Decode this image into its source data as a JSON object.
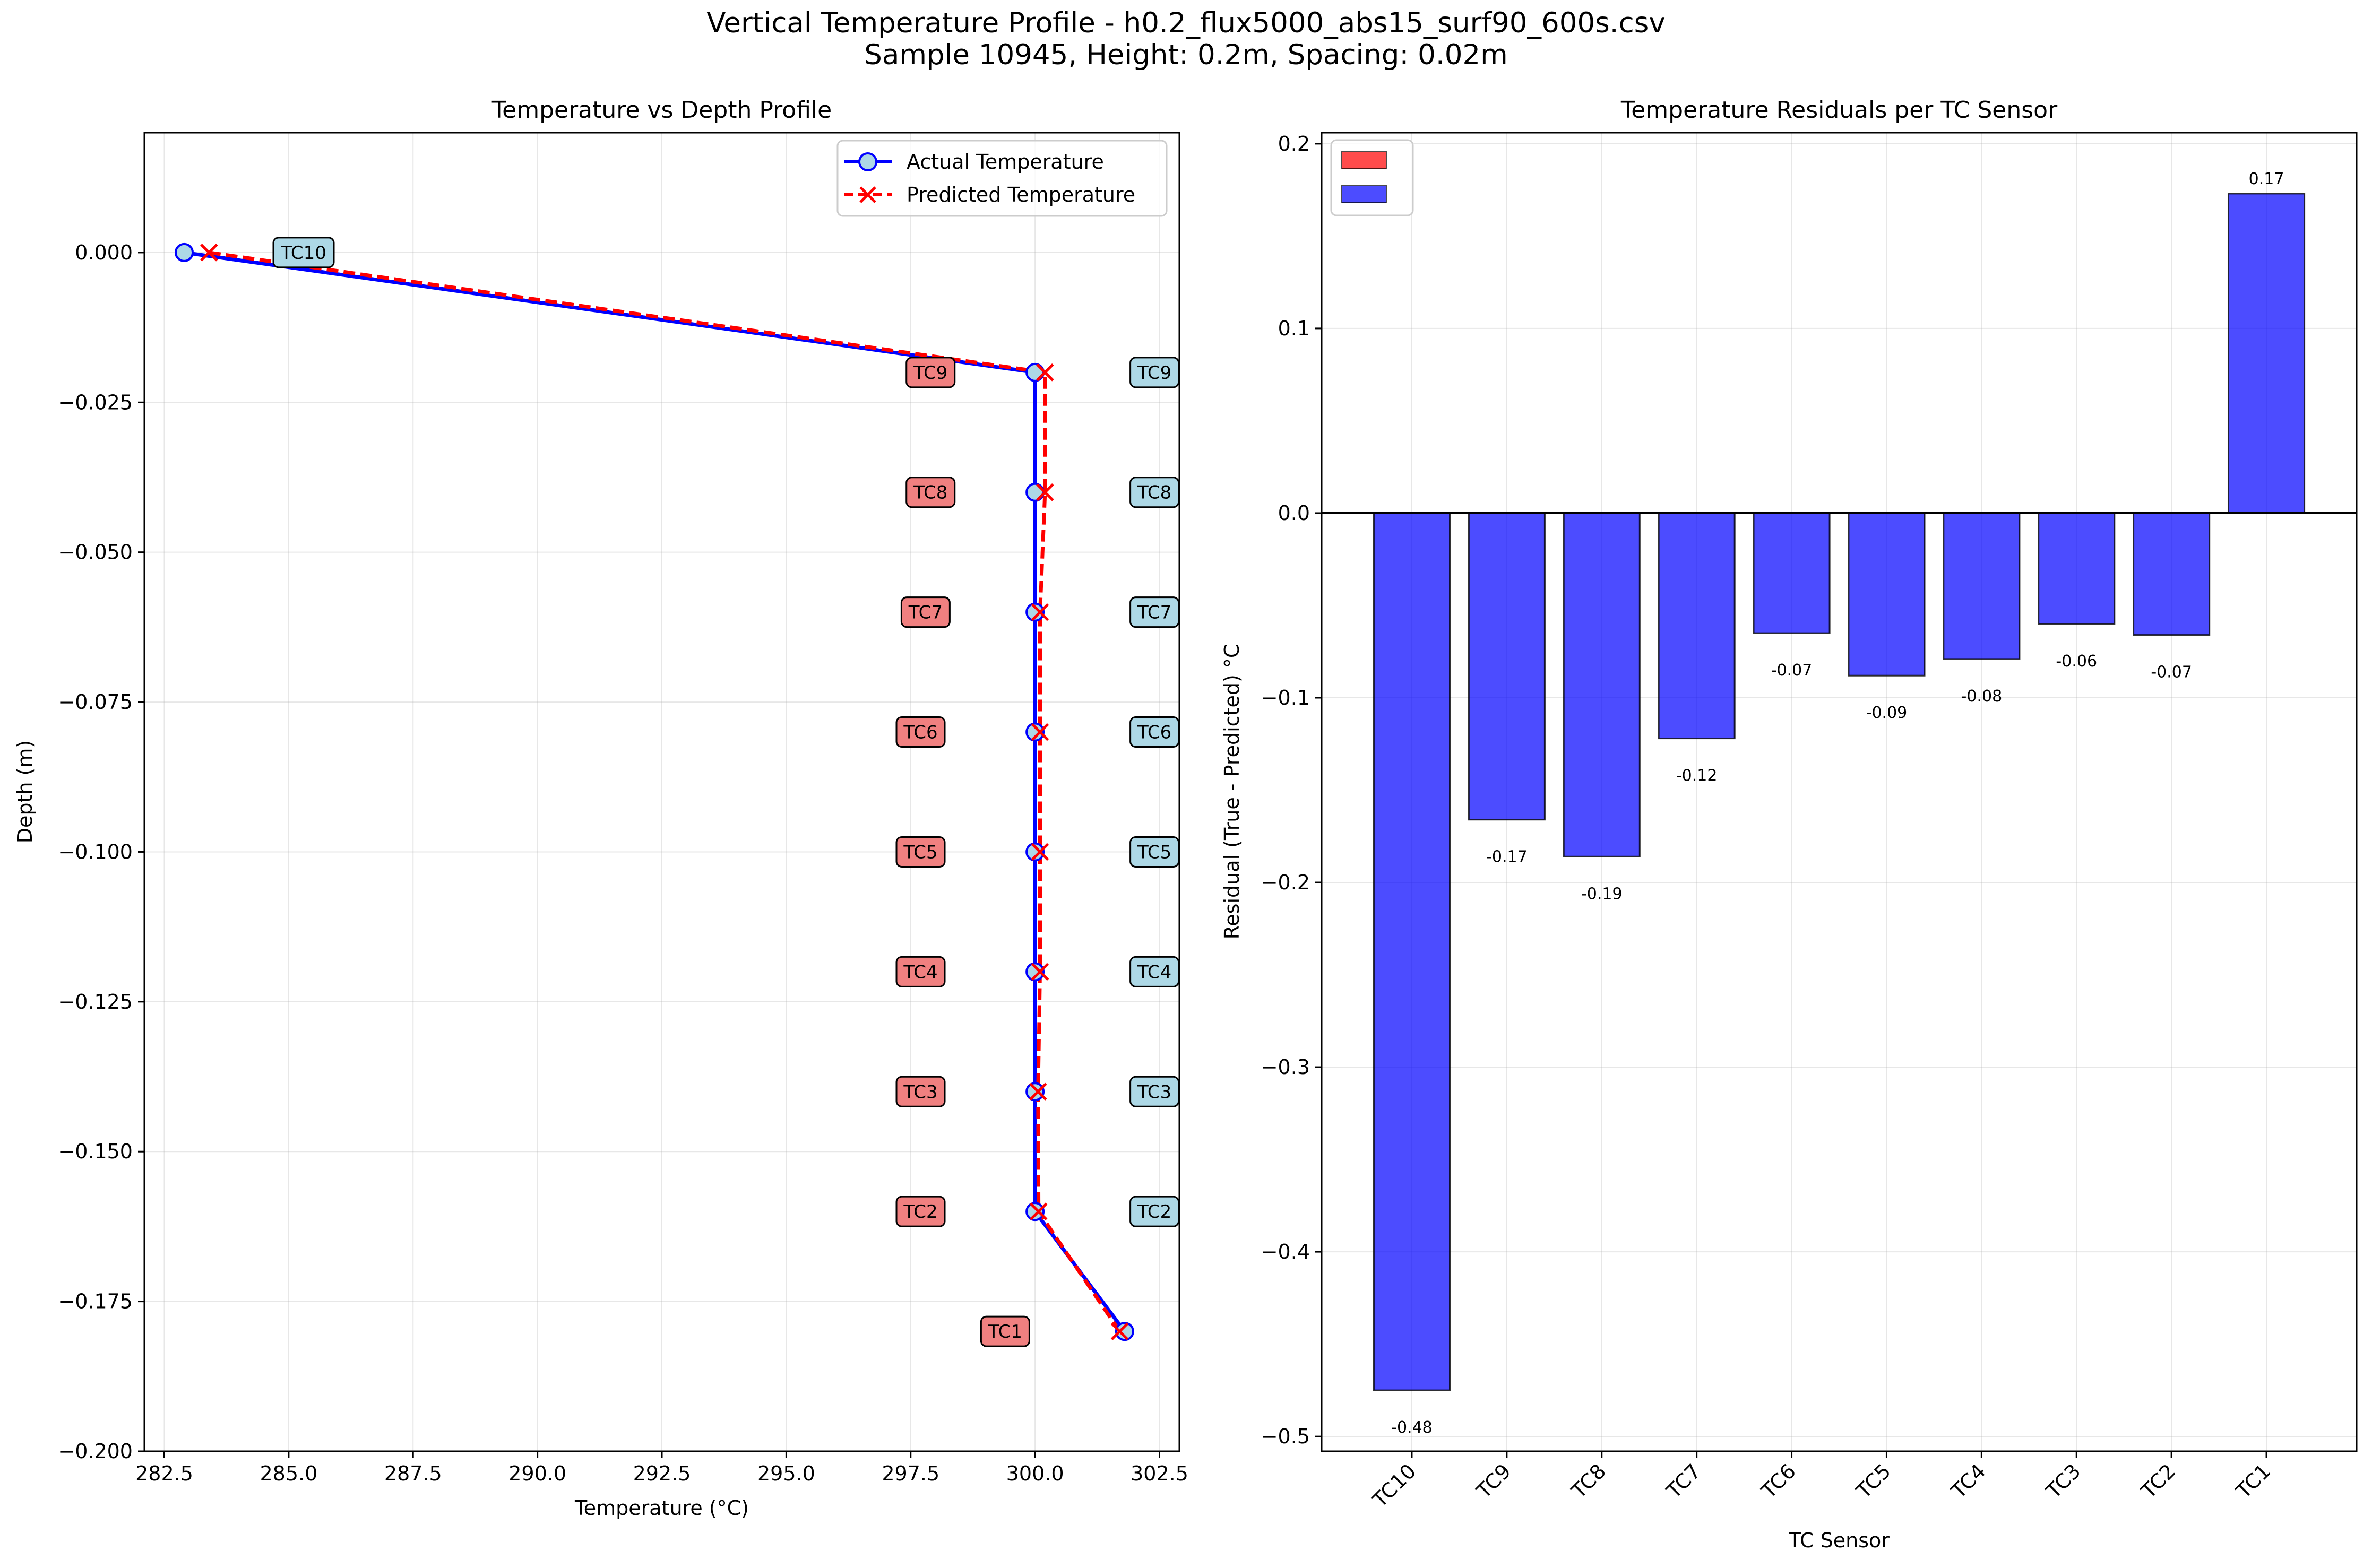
{
  "figure": {
    "title_line1": "Vertical Temperature Profile - h0.2_flux5000_abs15_surf90_600s.csv",
    "title_line2": "Sample 10945, Height: 0.2m, Spacing: 0.02m"
  },
  "chart_data": [
    {
      "type": "line",
      "title": "Temperature vs Depth Profile",
      "xlabel": "Temperature (°C)",
      "ylabel": "Depth (m)",
      "xlim": [
        282.1,
        302.9
      ],
      "ylim": [
        -0.2,
        0.02
      ],
      "xticks": [
        282.5,
        285.0,
        287.5,
        290.0,
        292.5,
        295.0,
        297.5,
        300.0,
        302.5
      ],
      "yticks": [
        0.0,
        -0.025,
        -0.05,
        -0.075,
        -0.1,
        -0.125,
        -0.15,
        -0.175,
        -0.2
      ],
      "grid": true,
      "legend_position": "top-right",
      "series": [
        {
          "name": "Actual Temperature",
          "color": "#0000ff",
          "marker": "circle",
          "style": "solid",
          "x": [
            282.9,
            300.0,
            300.0,
            300.0,
            300.0,
            300.0,
            300.0,
            300.0,
            300.0,
            301.8
          ],
          "y": [
            0.0,
            -0.02,
            -0.04,
            -0.06,
            -0.08,
            -0.1,
            -0.12,
            -0.14,
            -0.16,
            -0.18
          ]
        },
        {
          "name": "Predicted Temperature",
          "color": "#ff0000",
          "marker": "x",
          "style": "dashed",
          "x": [
            283.4,
            300.2,
            300.2,
            300.1,
            300.1,
            300.1,
            300.1,
            300.06,
            300.07,
            301.7
          ],
          "y": [
            0.0,
            -0.02,
            -0.04,
            -0.06,
            -0.08,
            -0.1,
            -0.12,
            -0.14,
            -0.16,
            -0.18
          ]
        }
      ],
      "annotations_actual": [
        {
          "label": "TC10",
          "x": 285.3,
          "y": 0.0
        },
        {
          "label": "TC9",
          "x": 302.4,
          "y": -0.02
        },
        {
          "label": "TC8",
          "x": 302.4,
          "y": -0.04
        },
        {
          "label": "TC7",
          "x": 302.4,
          "y": -0.06
        },
        {
          "label": "TC6",
          "x": 302.4,
          "y": -0.08
        },
        {
          "label": "TC5",
          "x": 302.4,
          "y": -0.1
        },
        {
          "label": "TC4",
          "x": 302.4,
          "y": -0.12
        },
        {
          "label": "TC3",
          "x": 302.4,
          "y": -0.14
        },
        {
          "label": "TC2",
          "x": 302.4,
          "y": -0.16
        }
      ],
      "annotations_predicted": [
        {
          "label": "TC9",
          "x": 297.9,
          "y": -0.02
        },
        {
          "label": "TC8",
          "x": 297.9,
          "y": -0.04
        },
        {
          "label": "TC7",
          "x": 297.8,
          "y": -0.06
        },
        {
          "label": "TC6",
          "x": 297.7,
          "y": -0.08
        },
        {
          "label": "TC5",
          "x": 297.7,
          "y": -0.1
        },
        {
          "label": "TC4",
          "x": 297.7,
          "y": -0.12
        },
        {
          "label": "TC3",
          "x": 297.7,
          "y": -0.14
        },
        {
          "label": "TC2",
          "x": 297.7,
          "y": -0.16
        },
        {
          "label": "TC1",
          "x": 299.4,
          "y": -0.18
        }
      ],
      "actual_label_color": "#add8e6",
      "predicted_label_color": "#f08080"
    },
    {
      "type": "bar",
      "title": "Temperature Residuals per TC Sensor",
      "xlabel": "TC Sensor",
      "ylabel": "Residual (True - Predicted) °C",
      "categories": [
        "TC10",
        "TC9",
        "TC8",
        "TC7",
        "TC6",
        "TC5",
        "TC4",
        "TC3",
        "TC2",
        "TC1"
      ],
      "values": [
        -0.475,
        -0.166,
        -0.186,
        -0.122,
        -0.065,
        -0.088,
        -0.079,
        -0.06,
        -0.066,
        0.173
      ],
      "value_labels": [
        "-0.48",
        "-0.17",
        "-0.19",
        "-0.12",
        "-0.07",
        "-0.09",
        "-0.08",
        "-0.06",
        "-0.07",
        "0.17"
      ],
      "ylim": [
        -0.508,
        0.206
      ],
      "yticks": [
        0.2,
        0.1,
        0.0,
        -0.1,
        -0.2,
        -0.3,
        -0.4,
        -0.5
      ],
      "ytick_labels": [
        "0.2",
        "0.1",
        "0.0",
        "−0.1",
        "−0.2",
        "−0.3",
        "−0.4",
        "−0.5"
      ],
      "bar_color": "#0000ff",
      "grid": true,
      "legend_position": "top-left",
      "legend": [
        {
          "color": "#ff0000",
          "label": ""
        },
        {
          "color": "#0000ff",
          "label": ""
        }
      ]
    }
  ]
}
